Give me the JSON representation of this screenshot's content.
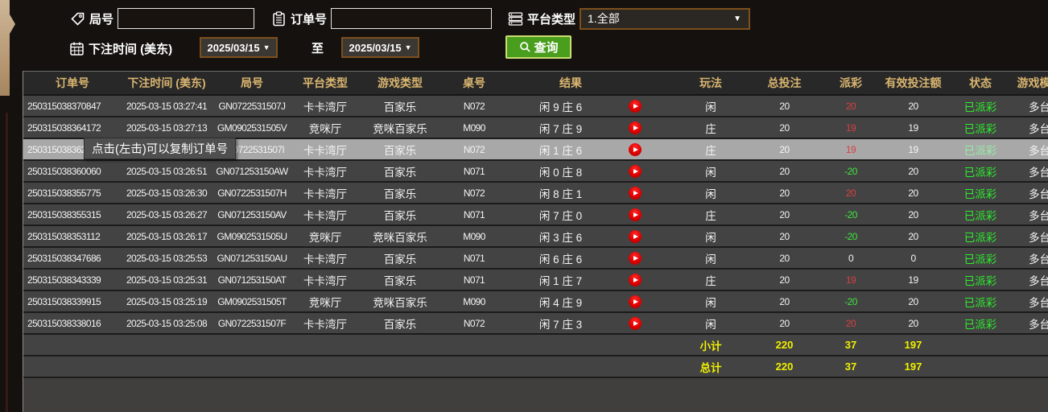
{
  "filters": {
    "round_label": "局号",
    "round_value": "",
    "order_label": "订单号",
    "order_value": "",
    "platform_label": "平台类型",
    "platform_value": "1.全部",
    "bet_time_label": "下注时间 (美东)",
    "date_from": "2025/03/15",
    "to_label": "至",
    "date_to": "2025/03/15",
    "query_label": "查询"
  },
  "tooltip": "点击(左击)可以复制订单号",
  "colors": {
    "payout_positive": "#d84040",
    "payout_negative": "#3fe43f",
    "status_paid": "#2dee2d",
    "summary": "#f0f000",
    "header_text": "#d9b570"
  },
  "table": {
    "headers": [
      "订单号",
      "下注时间 (美东)",
      "局号",
      "平台类型",
      "游戏类型",
      "桌号",
      "结果",
      "玩法",
      "总投注",
      "派彩",
      "有效投注额",
      "状态",
      "游戏模式"
    ],
    "rows": [
      {
        "order": "250315038370847",
        "time": "2025-03-15 03:27:41",
        "round": "GN0722531507J",
        "platform": "卡卡湾厅",
        "game": "百家乐",
        "tableNo": "N072",
        "result": "闲 9 庄 6",
        "play": "闲",
        "bet": "20",
        "payout": "20",
        "payout_color": "red",
        "valid": "20",
        "status": "已派彩",
        "mode": "多台",
        "highlighted": false
      },
      {
        "order": "250315038364172",
        "time": "2025-03-15 03:27:13",
        "round": "GM0902531505V",
        "platform": "竞咪厅",
        "game": "竞咪百家乐",
        "tableNo": "M090",
        "result": "闲 7 庄 9",
        "play": "庄",
        "bet": "20",
        "payout": "19",
        "payout_color": "red",
        "valid": "19",
        "status": "已派彩",
        "mode": "多台",
        "highlighted": false
      },
      {
        "order": "250315038362",
        "time": "",
        "round": "GN0722531507I",
        "platform": "卡卡湾厅",
        "game": "百家乐",
        "tableNo": "N072",
        "result": "闲 1 庄 6",
        "play": "庄",
        "bet": "20",
        "payout": "19",
        "payout_color": "red",
        "valid": "19",
        "status": "已派彩",
        "mode": "多台",
        "highlighted": true
      },
      {
        "order": "250315038360060",
        "time": "2025-03-15 03:26:51",
        "round": "GN071253150AW",
        "platform": "卡卡湾厅",
        "game": "百家乐",
        "tableNo": "N071",
        "result": "闲 0 庄 8",
        "play": "闲",
        "bet": "20",
        "payout": "-20",
        "payout_color": "green",
        "valid": "20",
        "status": "已派彩",
        "mode": "多台",
        "highlighted": false
      },
      {
        "order": "250315038355775",
        "time": "2025-03-15 03:26:30",
        "round": "GN0722531507H",
        "platform": "卡卡湾厅",
        "game": "百家乐",
        "tableNo": "N072",
        "result": "闲 8 庄 1",
        "play": "闲",
        "bet": "20",
        "payout": "20",
        "payout_color": "red",
        "valid": "20",
        "status": "已派彩",
        "mode": "多台",
        "highlighted": false
      },
      {
        "order": "250315038355315",
        "time": "2025-03-15 03:26:27",
        "round": "GN071253150AV",
        "platform": "卡卡湾厅",
        "game": "百家乐",
        "tableNo": "N071",
        "result": "闲 7 庄 0",
        "play": "庄",
        "bet": "20",
        "payout": "-20",
        "payout_color": "green",
        "valid": "20",
        "status": "已派彩",
        "mode": "多台",
        "highlighted": false
      },
      {
        "order": "250315038353112",
        "time": "2025-03-15 03:26:17",
        "round": "GM0902531505U",
        "platform": "竞咪厅",
        "game": "竞咪百家乐",
        "tableNo": "M090",
        "result": "闲 3 庄 6",
        "play": "闲",
        "bet": "20",
        "payout": "-20",
        "payout_color": "green",
        "valid": "20",
        "status": "已派彩",
        "mode": "多台",
        "highlighted": false
      },
      {
        "order": "250315038347686",
        "time": "2025-03-15 03:25:53",
        "round": "GN071253150AU",
        "platform": "卡卡湾厅",
        "game": "百家乐",
        "tableNo": "N071",
        "result": "闲 6 庄 6",
        "play": "闲",
        "bet": "20",
        "payout": "0",
        "payout_color": "white",
        "valid": "0",
        "status": "已派彩",
        "mode": "多台",
        "highlighted": false
      },
      {
        "order": "250315038343339",
        "time": "2025-03-15 03:25:31",
        "round": "GN071253150AT",
        "platform": "卡卡湾厅",
        "game": "百家乐",
        "tableNo": "N071",
        "result": "闲 1 庄 7",
        "play": "庄",
        "bet": "20",
        "payout": "19",
        "payout_color": "red",
        "valid": "19",
        "status": "已派彩",
        "mode": "多台",
        "highlighted": false
      },
      {
        "order": "250315038339915",
        "time": "2025-03-15 03:25:19",
        "round": "GM0902531505T",
        "platform": "竞咪厅",
        "game": "竞咪百家乐",
        "tableNo": "M090",
        "result": "闲 4 庄 9",
        "play": "闲",
        "bet": "20",
        "payout": "-20",
        "payout_color": "green",
        "valid": "20",
        "status": "已派彩",
        "mode": "多台",
        "highlighted": false
      },
      {
        "order": "250315038338016",
        "time": "2025-03-15 03:25:08",
        "round": "GN0722531507F",
        "platform": "卡卡湾厅",
        "game": "百家乐",
        "tableNo": "N072",
        "result": "闲 7 庄 3",
        "play": "闲",
        "bet": "20",
        "payout": "20",
        "payout_color": "red",
        "valid": "20",
        "status": "已派彩",
        "mode": "多台",
        "highlighted": false
      }
    ],
    "subtotal": {
      "label": "小计",
      "bet": "220",
      "payout": "37",
      "valid": "197"
    },
    "total": {
      "label": "总计",
      "bet": "220",
      "payout": "37",
      "valid": "197"
    }
  }
}
